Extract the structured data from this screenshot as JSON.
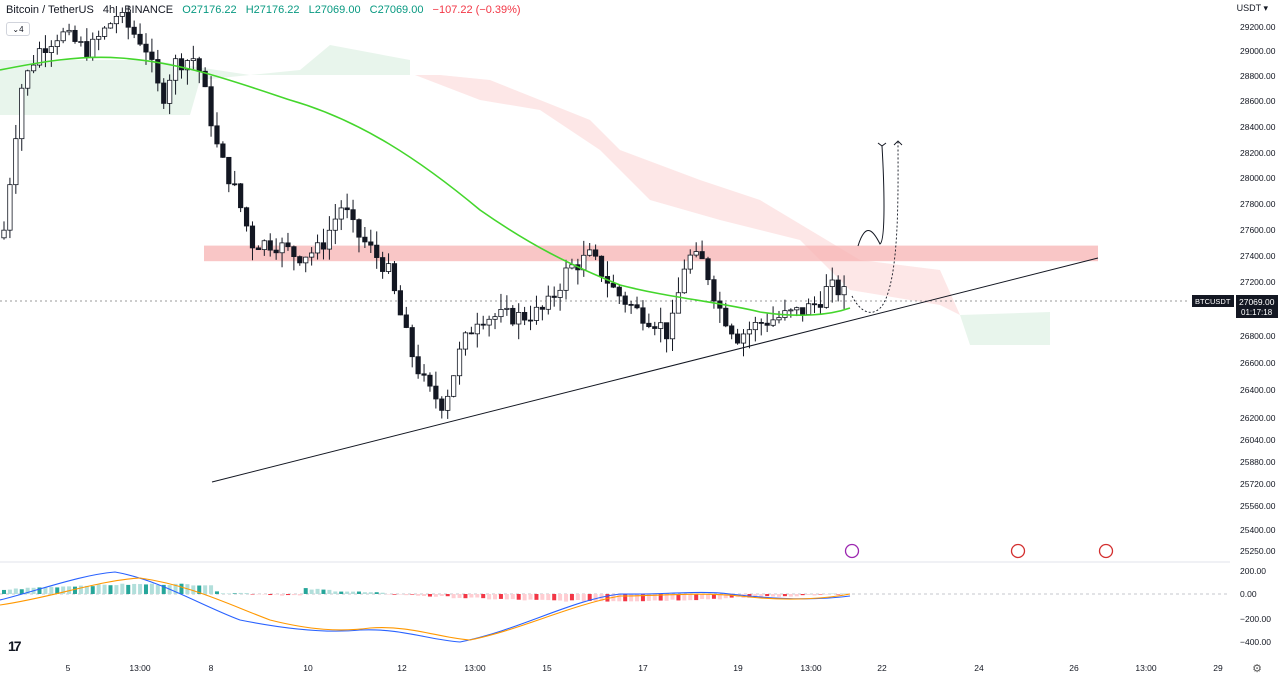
{
  "header": {
    "symbol": "Bitcoin / TetherUS",
    "interval": "4h",
    "exchange": "BINANCE",
    "open": "O27176.22",
    "high": "H27176.22",
    "low": "L27069.00",
    "close": "C27069.00",
    "change": "−107.22 (−0.39%)",
    "indicator_count": "4"
  },
  "axis": {
    "currency": "USDT",
    "price_ticks": [
      "29200.00",
      "29000.00",
      "28800.00",
      "28600.00",
      "28400.00",
      "28200.00",
      "28000.00",
      "27800.00",
      "27600.00",
      "27400.00",
      "27200.00",
      "26800.00",
      "26600.00",
      "26400.00",
      "26200.00",
      "26040.00",
      "25880.00",
      "25720.00",
      "25560.00",
      "25400.00",
      "25250.00"
    ],
    "macd_ticks": [
      "200.00",
      "0.00",
      "−200.00",
      "−400.00"
    ],
    "time_ticks": [
      "5",
      "13:00",
      "8",
      "10",
      "12",
      "13:00",
      "15",
      "17",
      "19",
      "13:00",
      "22",
      "24",
      "26",
      "13:00",
      "29"
    ]
  },
  "last_price": {
    "symbol": "BTCUSDT",
    "price": "27069.00",
    "countdown": "01:17:18"
  },
  "colors": {
    "up": "#089981",
    "down": "#f23645",
    "ma": "#44d62c",
    "macd": "#2962ff",
    "signal": "#ff9800",
    "resistance": "#f7b3b3"
  },
  "chart_data": {
    "type": "candlestick",
    "resistance_zone": {
      "low": 27360,
      "high": 27480,
      "start": 4,
      "end": 189
    },
    "trendline": {
      "from": [
        4,
        25780
      ],
      "to": [
        189,
        27400
      ]
    },
    "projection": "dotted arrow up toward 28300",
    "macd_range": [
      -500,
      250
    ]
  }
}
